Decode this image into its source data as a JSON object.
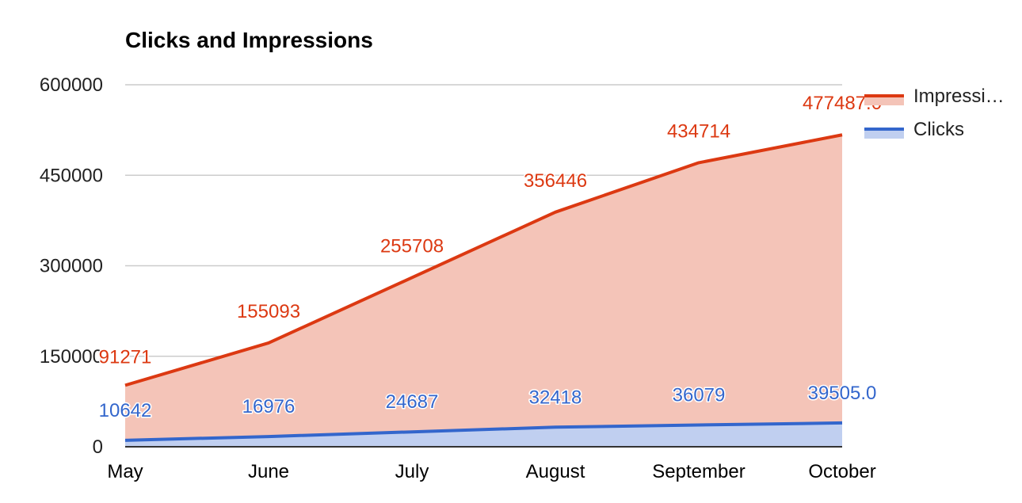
{
  "chart_data": {
    "type": "area",
    "title": "Clicks and Impressions",
    "xlabel": "",
    "ylabel": "",
    "categories": [
      "May",
      "June",
      "July",
      "August",
      "September",
      "October"
    ],
    "ylim": [
      0,
      600000
    ],
    "yticks": [
      0,
      150000,
      300000,
      450000,
      600000
    ],
    "ytick_labels": [
      "0",
      "150000",
      "300000",
      "450000",
      "600000"
    ],
    "stacked": true,
    "grid": true,
    "legend": "right",
    "series": [
      {
        "name": "Clicks",
        "values": [
          10642,
          16976,
          24687,
          32418,
          36079,
          39505
        ],
        "value_labels": [
          "10642",
          "16976",
          "24687",
          "32418",
          "36079",
          "39505.0"
        ],
        "line_color": "#3366cc",
        "fill_color": "#c0cff0",
        "label_color": "#3366cc"
      },
      {
        "name": "Impressions",
        "values": [
          91271,
          155093,
          255708,
          356446,
          434714,
          477487
        ],
        "value_labels": [
          "91271",
          "155093",
          "255708",
          "356446",
          "434714",
          "477487.0"
        ],
        "line_color": "#dc3912",
        "fill_color": "#f4c4b8",
        "label_color": "#dc3912"
      }
    ],
    "legend_entries": [
      {
        "label": "Impressi…",
        "series": "Impressions"
      },
      {
        "label": "Clicks",
        "series": "Clicks"
      }
    ]
  }
}
